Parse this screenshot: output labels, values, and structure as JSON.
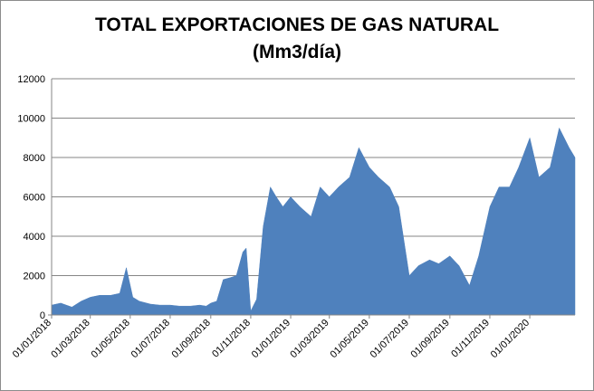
{
  "chart_data": {
    "type": "area",
    "title": "TOTAL EXPORTACIONES DE GAS NATURAL",
    "subtitle": "(Mm3/día)",
    "xlabel": "",
    "ylabel": "",
    "ylim": [
      0,
      12000
    ],
    "yticks": [
      0,
      2000,
      4000,
      6000,
      8000,
      10000,
      12000
    ],
    "xlim": [
      "2018-01-01",
      "2020-03-10"
    ],
    "xticks": [
      "01/01/2018",
      "01/03/2018",
      "01/05/2018",
      "01/07/2018",
      "01/09/2018",
      "01/11/2018",
      "01/01/2019",
      "01/03/2019",
      "01/05/2019",
      "01/07/2019",
      "01/09/2019",
      "01/11/2019",
      "01/01/2020"
    ],
    "grid": "horizontal",
    "legend": "none",
    "series": [
      {
        "color": "#4f81bd",
        "x": [
          "2018-01-01",
          "2018-01-15",
          "2018-02-01",
          "2018-02-15",
          "2018-03-01",
          "2018-03-15",
          "2018-04-01",
          "2018-04-15",
          "2018-04-25",
          "2018-05-05",
          "2018-05-15",
          "2018-06-01",
          "2018-06-15",
          "2018-07-01",
          "2018-07-15",
          "2018-08-01",
          "2018-08-15",
          "2018-08-25",
          "2018-09-01",
          "2018-09-10",
          "2018-09-20",
          "2018-10-01",
          "2018-10-10",
          "2018-10-20",
          "2018-10-25",
          "2018-11-01",
          "2018-11-10",
          "2018-11-20",
          "2018-12-01",
          "2018-12-10",
          "2018-12-20",
          "2019-01-01",
          "2019-01-15",
          "2019-02-01",
          "2019-02-15",
          "2019-03-01",
          "2019-03-15",
          "2019-04-01",
          "2019-04-15",
          "2019-05-01",
          "2019-05-15",
          "2019-06-01",
          "2019-06-15",
          "2019-07-01",
          "2019-07-15",
          "2019-08-01",
          "2019-08-15",
          "2019-09-01",
          "2019-09-15",
          "2019-10-01",
          "2019-10-15",
          "2019-11-01",
          "2019-11-15",
          "2019-12-01",
          "2019-12-15",
          "2020-01-01",
          "2020-01-15",
          "2020-02-01",
          "2020-02-15",
          "2020-03-01",
          "2020-03-10"
        ],
        "values": [
          500,
          600,
          400,
          700,
          900,
          1000,
          1000,
          1100,
          2400,
          900,
          700,
          550,
          500,
          500,
          450,
          450,
          500,
          450,
          600,
          700,
          1800,
          1900,
          2000,
          3200,
          3400,
          200,
          800,
          4500,
          6500,
          6000,
          5500,
          6000,
          5500,
          5000,
          6500,
          6000,
          6500,
          7000,
          8500,
          7500,
          7000,
          6500,
          5500,
          2000,
          2500,
          2800,
          2600,
          3000,
          2500,
          1500,
          3000,
          5500,
          6500,
          6500,
          7500,
          9000,
          7000,
          7500,
          9500,
          8500,
          8000
        ]
      }
    ]
  }
}
